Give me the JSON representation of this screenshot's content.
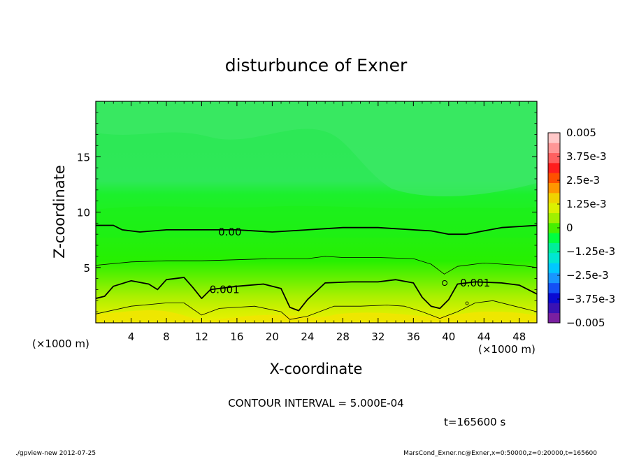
{
  "chart_data": {
    "type": "heatmap",
    "title": "disturbunce of Exner",
    "xlabel": "X-coordinate",
    "ylabel": "Z-coordinate",
    "x_unit_label": "(×1000 m)",
    "x_unit_label_right": "(×1000 m)",
    "xlim": [
      0,
      50
    ],
    "ylim": [
      0,
      20
    ],
    "xticks": [
      "4",
      "8",
      "12",
      "16",
      "20",
      "24",
      "28",
      "32",
      "36",
      "40",
      "44",
      "48"
    ],
    "yticks": [
      "5",
      "10",
      "15"
    ],
    "colorbar": {
      "range": [
        -0.005,
        0.005
      ],
      "tick_labels": [
        "0.005",
        "3.75e-3",
        "2.5e-3",
        "1.25e-3",
        "0",
        "−1.25e-3",
        "−2.5e-3",
        "−3.75e-3",
        "−0.005"
      ],
      "colors": [
        "#7a1fa0",
        "#3a12b4",
        "#0a0ad2",
        "#1450f5",
        "#1896ff",
        "#00c8ff",
        "#00e6d2",
        "#00ee9a",
        "#00ff40",
        "#46f000",
        "#a0f000",
        "#dcf000",
        "#f0d200",
        "#ff9600",
        "#ff5000",
        "#ff1e1e",
        "#ff6060",
        "#ff9696",
        "#ffc8c8"
      ]
    },
    "contour_labels": [
      {
        "text": "0.00",
        "x": 15.2,
        "z": 8.2
      },
      {
        "text": "0.001",
        "x": 14.6,
        "z": 3.0
      },
      {
        "text": "0.001",
        "x": 43.0,
        "z": 3.6
      }
    ],
    "contour_lines": [
      {
        "level": 0.0,
        "bold": true,
        "points": [
          [
            0,
            8.8
          ],
          [
            2,
            8.8
          ],
          [
            3,
            8.4
          ],
          [
            5,
            8.2
          ],
          [
            8,
            8.4
          ],
          [
            12,
            8.4
          ],
          [
            16,
            8.4
          ],
          [
            20,
            8.2
          ],
          [
            24,
            8.4
          ],
          [
            28,
            8.6
          ],
          [
            32,
            8.6
          ],
          [
            36,
            8.4
          ],
          [
            38,
            8.3
          ],
          [
            40,
            8.0
          ],
          [
            42,
            8.0
          ],
          [
            44,
            8.3
          ],
          [
            46,
            8.6
          ],
          [
            48,
            8.7
          ],
          [
            50,
            8.8
          ]
        ]
      },
      {
        "level": 0.0005,
        "bold": false,
        "points": [
          [
            0,
            5.2
          ],
          [
            4,
            5.5
          ],
          [
            8,
            5.6
          ],
          [
            12,
            5.6
          ],
          [
            16,
            5.7
          ],
          [
            20,
            5.8
          ],
          [
            24,
            5.8
          ],
          [
            26,
            6.0
          ],
          [
            28,
            5.9
          ],
          [
            32,
            5.9
          ],
          [
            36,
            5.8
          ],
          [
            38,
            5.3
          ],
          [
            39.5,
            4.4
          ],
          [
            41,
            5.1
          ],
          [
            44,
            5.4
          ],
          [
            48,
            5.2
          ],
          [
            50,
            5.0
          ]
        ]
      },
      {
        "level": 0.001,
        "bold": true,
        "points": [
          [
            0,
            2.2
          ],
          [
            1,
            2.4
          ],
          [
            2,
            3.3
          ],
          [
            4,
            3.8
          ],
          [
            6,
            3.5
          ],
          [
            7,
            3.0
          ],
          [
            8,
            3.9
          ],
          [
            10,
            4.1
          ],
          [
            11,
            3.2
          ],
          [
            12,
            2.2
          ],
          [
            13,
            3.0
          ],
          [
            16,
            3.3
          ],
          [
            19,
            3.5
          ],
          [
            21,
            3.1
          ],
          [
            22,
            1.4
          ],
          [
            23,
            1.1
          ],
          [
            24,
            2.1
          ],
          [
            26,
            3.6
          ],
          [
            29,
            3.7
          ],
          [
            32,
            3.7
          ],
          [
            34,
            3.9
          ],
          [
            36,
            3.6
          ],
          [
            37,
            2.3
          ],
          [
            38,
            1.5
          ],
          [
            39,
            1.3
          ],
          [
            40,
            2.1
          ],
          [
            41,
            3.5
          ],
          [
            43,
            3.7
          ],
          [
            46,
            3.6
          ],
          [
            48,
            3.4
          ],
          [
            50,
            2.6
          ]
        ]
      },
      {
        "level": 0.0015,
        "bold": false,
        "points": [
          [
            0,
            0.8
          ],
          [
            4,
            1.5
          ],
          [
            8,
            1.8
          ],
          [
            10,
            1.8
          ],
          [
            12,
            0.7
          ],
          [
            14,
            1.3
          ],
          [
            18,
            1.5
          ],
          [
            21,
            1.0
          ],
          [
            22,
            0.3
          ],
          [
            24,
            0.6
          ],
          [
            27,
            1.5
          ],
          [
            30,
            1.5
          ],
          [
            33,
            1.6
          ],
          [
            35,
            1.5
          ],
          [
            37,
            1.0
          ],
          [
            39,
            0.4
          ],
          [
            41,
            1.0
          ],
          [
            43,
            1.8
          ],
          [
            45,
            2.0
          ],
          [
            48,
            1.4
          ],
          [
            50,
            1.0
          ]
        ]
      }
    ],
    "annotations": [
      "CONTOUR INTERVAL = 5.000E-04",
      "t=165600 s"
    ]
  },
  "footer": {
    "left": "./gpview-new   2012-07-25",
    "right": "MarsCond_Exner.nc@Exner,x=0:50000,z=0:20000,t=165600"
  }
}
